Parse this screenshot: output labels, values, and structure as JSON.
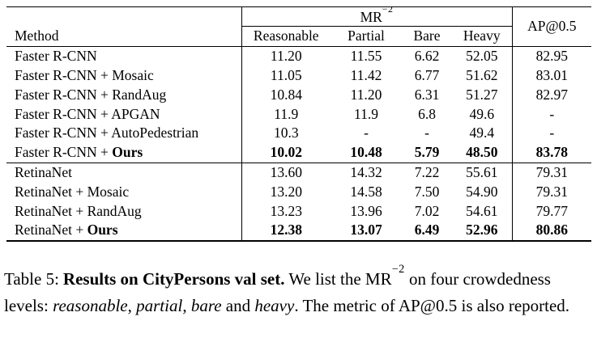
{
  "table": {
    "header": {
      "method": "Method",
      "mr": "MR",
      "mr_sup": "−2",
      "ap": "AP@0.5",
      "sub": [
        "Reasonable",
        "Partial",
        "Bare",
        "Heavy"
      ]
    },
    "rows": [
      {
        "method": "Faster R-CNN",
        "values": [
          "11.20",
          "11.55",
          "6.62",
          "52.05",
          "82.95"
        ]
      },
      {
        "method": "Faster R-CNN + Mosaic",
        "values": [
          "11.05",
          "11.42",
          "6.77",
          "51.62",
          "83.01"
        ]
      },
      {
        "method": "Faster R-CNN + RandAug",
        "values": [
          "10.84",
          "11.20",
          "6.31",
          "51.27",
          "82.97"
        ]
      },
      {
        "method": "Faster R-CNN + APGAN",
        "values": [
          "11.9",
          "11.9",
          "6.8",
          "49.6",
          "-"
        ]
      },
      {
        "method": "Faster R-CNN + AutoPedestrian",
        "values": [
          "10.3",
          "-",
          "-",
          "49.4",
          "-"
        ]
      },
      {
        "method": "Faster R-CNN + ",
        "method_bold": "Ours",
        "values": [
          "10.02",
          "10.48",
          "5.79",
          "48.50",
          "83.78"
        ]
      },
      {
        "method": "RetinaNet",
        "values": [
          "13.60",
          "14.32",
          "7.22",
          "55.61",
          "79.31"
        ]
      },
      {
        "method": "RetinaNet + Mosaic",
        "values": [
          "13.20",
          "14.58",
          "7.50",
          "54.90",
          "79.31"
        ]
      },
      {
        "method": "RetinaNet + RandAug",
        "values": [
          "13.23",
          "13.96",
          "7.02",
          "54.61",
          "79.77"
        ]
      },
      {
        "method": "RetinaNet + ",
        "method_bold": "Ours",
        "values": [
          "12.38",
          "13.07",
          "6.49",
          "52.96",
          "80.86"
        ]
      }
    ]
  },
  "caption": {
    "label": "Table 5:",
    "bold": "Results on CityPersons val set.",
    "t1": " We list the MR",
    "sup": "−2",
    "t2": " on four crowdedness levels: ",
    "i1": "reasonable",
    "c1": ", ",
    "i2": "partial",
    "c2": ", ",
    "i3": "bare",
    "a1": " and ",
    "i4": "heavy",
    "t3": ". The metric of AP@0.5 is also reported."
  }
}
